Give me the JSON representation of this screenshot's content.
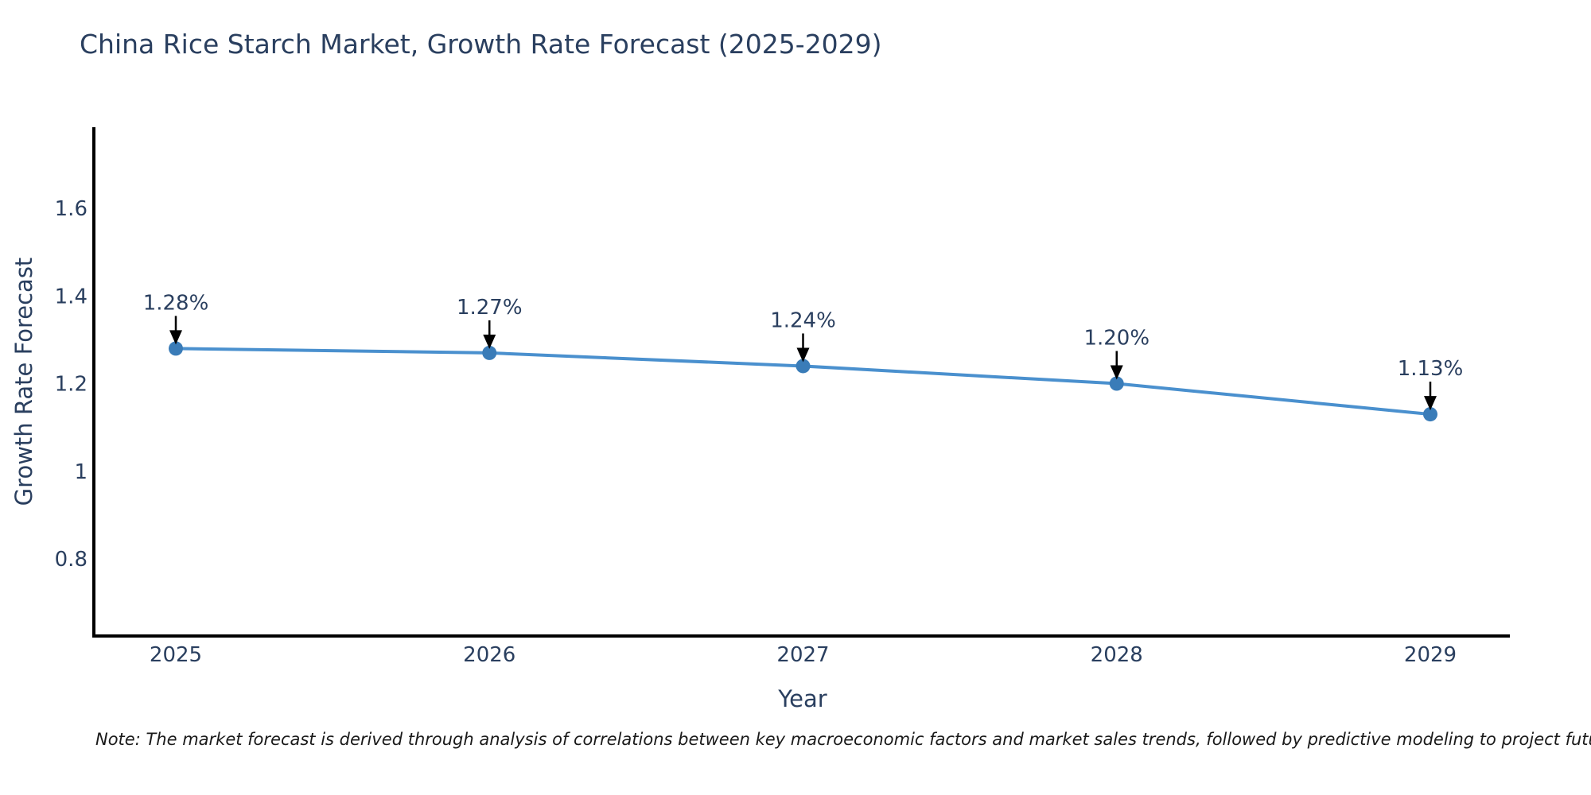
{
  "title": "China Rice Starch Market, Growth Rate Forecast (2025-2029)",
  "note": "Note: The market forecast is derived through analysis of correlations between key macroeconomic factors and market sales trends, followed by predictive modeling to project future sales",
  "chart_data": {
    "type": "line",
    "title": "China Rice Starch Market, Growth Rate Forecast (2025-2029)",
    "x": [
      2025,
      2026,
      2027,
      2028,
      2029
    ],
    "y": [
      1.28,
      1.27,
      1.24,
      1.2,
      1.13
    ],
    "point_labels": [
      "1.28%",
      "1.27%",
      "1.24%",
      "1.20%",
      "1.13%"
    ],
    "xlabel": "Year",
    "ylabel": "Growth Rate Forecast",
    "xtick_labels": [
      "2025",
      "2026",
      "2027",
      "2028",
      "2029"
    ],
    "yticks": [
      0.8,
      1,
      1.2,
      1.4,
      1.6
    ],
    "ytick_labels": [
      "0.8",
      "1",
      "1.2",
      "1.4",
      "1.6"
    ],
    "ylim": [
      0.62,
      1.79
    ],
    "grid": false,
    "legend": false,
    "annotation_style": "value labels with downward arrows to each point",
    "colors": {
      "line": "#4a90ce",
      "marker": "#3a7cb8",
      "axis": "#000000",
      "text": "#2a3f5f",
      "arrow": "#000000",
      "note_text": "#1a1a1a",
      "background": "#ffffff"
    }
  }
}
